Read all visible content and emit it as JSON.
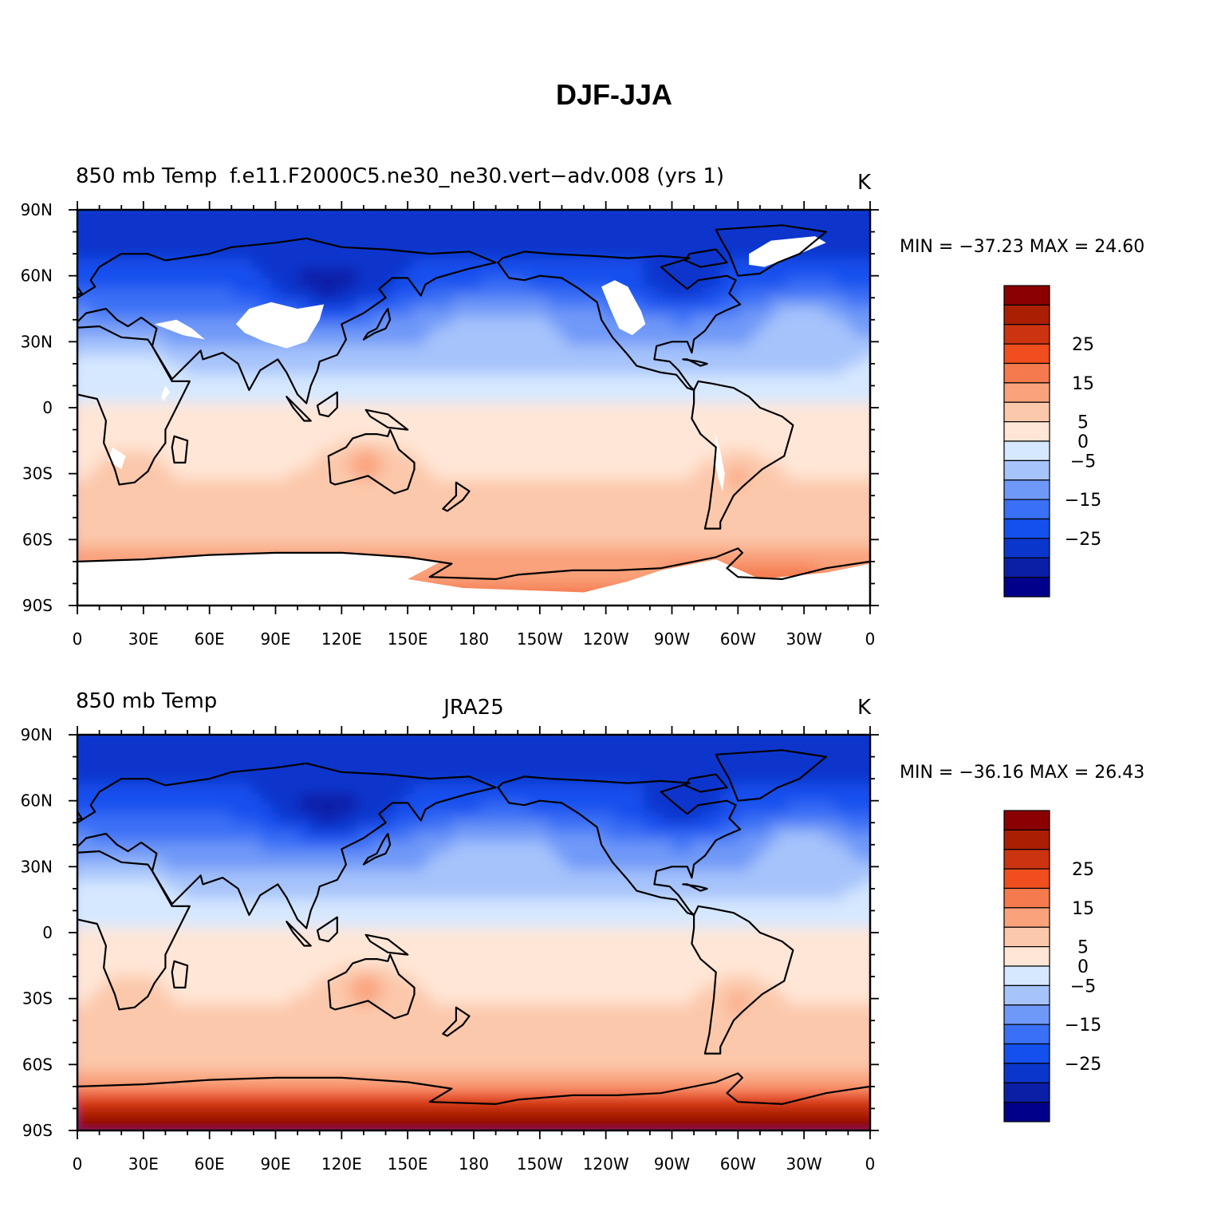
{
  "title": "DJF-JJA",
  "palette": [
    "#00008b",
    "#0a1fa6",
    "#0b36cc",
    "#1450ee",
    "#3a70f5",
    "#6f99f8",
    "#a6c3fb",
    "#d6e8ff",
    "#ffe6d6",
    "#fcc8ab",
    "#f9a27c",
    "#f57a4e",
    "#f04e1f",
    "#cc3311",
    "#aa1f04",
    "#8b0000"
  ],
  "colorbar": {
    "labels": [
      "25",
      "15",
      "5",
      "0",
      "−5",
      "−15",
      "−25"
    ],
    "label_levels": [
      25,
      15,
      5,
      0,
      -5,
      -15,
      -25
    ]
  },
  "chart_data": [
    {
      "type": "heatmap",
      "left_title": "850 mb Temp",
      "center_title": "f.e11.F2000C5.ne30_ne30.vert−adv.008 (yrs 1)",
      "units": "K",
      "stats_text": "MIN = −37.23 MAX =  24.60",
      "min": -37.23,
      "max": 24.6,
      "x_ticks": [
        "0",
        "30E",
        "60E",
        "90E",
        "120E",
        "150E",
        "180",
        "150W",
        "120W",
        "90W",
        "60W",
        "30W",
        "0"
      ],
      "y_ticks": [
        "90N",
        "60N",
        "30N",
        "0",
        "30S",
        "60S",
        "90S"
      ],
      "contour_levels": [
        -35,
        -30,
        -25,
        -20,
        -15,
        -10,
        -5,
        0,
        5,
        10,
        15,
        20,
        25,
        30,
        35
      ],
      "missing_data": "white regions over high topography (Tibet, Rockies, Andes, Greenland, Antarctica)"
    },
    {
      "type": "heatmap",
      "left_title": "850 mb Temp",
      "center_title": "JRA25",
      "units": "K",
      "stats_text": "MIN = −36.16 MAX =  26.43",
      "min": -36.16,
      "max": 26.43,
      "x_ticks": [
        "0",
        "30E",
        "60E",
        "90E",
        "120E",
        "150E",
        "180",
        "150W",
        "120W",
        "90W",
        "60W",
        "30W",
        "0"
      ],
      "y_ticks": [
        "90N",
        "60N",
        "30N",
        "0",
        "30S",
        "60S",
        "90S"
      ],
      "contour_levels": [
        -35,
        -30,
        -25,
        -20,
        -15,
        -10,
        -5,
        0,
        5,
        10,
        15,
        20,
        25,
        30,
        35
      ]
    }
  ]
}
